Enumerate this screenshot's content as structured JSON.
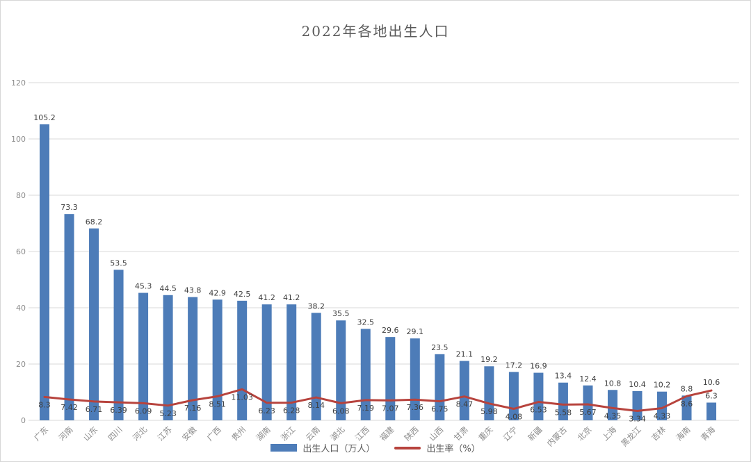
{
  "title": "2022年各地出生人口",
  "legend": {
    "bar_label": "出生人口（万人）",
    "line_label": "出生率（%）"
  },
  "colors": {
    "bar": "#4d7cb8",
    "line": "#b7433d",
    "grid": "#d9d9d9",
    "axis_text": "#8c8c8c",
    "value_text": "#3f3f3f",
    "title_text": "#595959"
  },
  "chart_data": {
    "type": "bar",
    "subtype": "bar-line-combo",
    "title": "2022年各地出生人口",
    "categories": [
      "广东",
      "河南",
      "山东",
      "四川",
      "河北",
      "江苏",
      "安徽",
      "广西",
      "贵州",
      "湖南",
      "浙江",
      "云南",
      "湖北",
      "江西",
      "福建",
      "陕西",
      "山西",
      "甘肃",
      "重庆",
      "辽宁",
      "新疆",
      "内蒙古",
      "北京",
      "上海",
      "黑龙江",
      "吉林",
      "海南",
      "青海"
    ],
    "series": [
      {
        "name": "出生人口（万人）",
        "type": "bar",
        "values": [
          105.2,
          73.3,
          68.2,
          53.5,
          45.3,
          44.5,
          43.8,
          42.9,
          42.5,
          41.2,
          41.2,
          38.2,
          35.5,
          32.5,
          29.6,
          29.1,
          23.5,
          21.1,
          19.2,
          17.2,
          16.9,
          13.4,
          12.4,
          10.8,
          10.4,
          10.2,
          8.8,
          6.3
        ]
      },
      {
        "name": "出生率（%）",
        "type": "line",
        "values": [
          8.3,
          7.42,
          6.71,
          6.39,
          6.09,
          5.23,
          7.16,
          8.51,
          11.03,
          6.23,
          6.28,
          8.14,
          6.08,
          7.19,
          7.07,
          7.36,
          6.75,
          8.47,
          5.98,
          4.08,
          6.53,
          5.58,
          5.67,
          4.35,
          3.34,
          4.33,
          8.6,
          10.6
        ]
      }
    ],
    "ylim": [
      0,
      120
    ],
    "yticks": [
      0,
      20,
      40,
      60,
      80,
      100,
      120
    ],
    "grid": true,
    "legend_position": "bottom",
    "x_label_rotation": -45
  }
}
